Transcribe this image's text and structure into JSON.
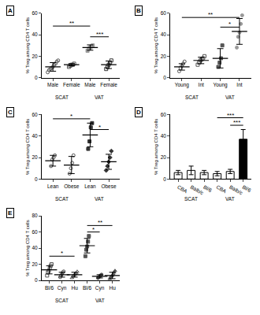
{
  "chart_data": [
    {
      "type": "scatter",
      "title": "A",
      "y_label": "% Treg among CD4 T cells",
      "groups": [
        {
          "name": "SCAT",
          "categories": [
            "Male",
            "Female"
          ]
        },
        {
          "name": "VAT",
          "categories": [
            "Male",
            "Female"
          ]
        }
      ],
      "points": [
        [
          5,
          7,
          8,
          9,
          10,
          12,
          13,
          15,
          16
        ],
        [
          10,
          11,
          12,
          12,
          13
        ],
        [
          25,
          27,
          28,
          29,
          30
        ],
        [
          8,
          10,
          12,
          14,
          16
        ]
      ],
      "means": [
        10,
        12,
        28,
        12
      ],
      "sds": [
        4,
        1,
        2.5,
        3.5
      ],
      "markers": [
        "circle-open",
        "square-open",
        "square",
        "square-open"
      ],
      "colors": [
        "#555555",
        "#555555",
        "#999999",
        "#333333"
      ],
      "significance": [
        {
          "from": 0,
          "to": 2,
          "y": 48,
          "label": "**"
        },
        {
          "from": 2,
          "to": 3,
          "y": 38,
          "label": "***"
        }
      ],
      "ylim": [
        0,
        60
      ],
      "yticks": [
        0,
        20,
        40,
        60
      ]
    },
    {
      "type": "scatter",
      "title": "B",
      "y_label": "% Treg among CD4 T cells",
      "groups": [
        {
          "name": "SCAT",
          "categories": [
            "Young",
            "Int"
          ]
        },
        {
          "name": "VAT",
          "categories": [
            "Young",
            "Int"
          ]
        }
      ],
      "points": [
        [
          6,
          9,
          11,
          13,
          15
        ],
        [
          12,
          14,
          16,
          17,
          18,
          20
        ],
        [
          10,
          14,
          18,
          30
        ],
        [
          28,
          38,
          42,
          50,
          58
        ]
      ],
      "means": [
        10,
        16,
        18,
        43
      ],
      "sds": [
        3,
        3,
        9,
        12
      ],
      "markers": [
        "circle-open",
        "square-open",
        "square",
        "circle"
      ],
      "colors": [
        "#555555",
        "#555555",
        "#555555",
        "#999999"
      ],
      "significance": [
        {
          "from": 0,
          "to": 3,
          "y": 56,
          "label": "**"
        },
        {
          "from": 2,
          "to": 3,
          "y": 47,
          "label": "*"
        }
      ],
      "ylim": [
        0,
        60
      ],
      "yticks": [
        0,
        20,
        40,
        60
      ]
    },
    {
      "type": "scatter",
      "title": "C",
      "y_label": "% Treg among CD4 T cells",
      "groups": [
        {
          "name": "SCAT",
          "categories": [
            "Lean",
            "Obese"
          ]
        },
        {
          "name": "VAT",
          "categories": [
            "Lean",
            "Obese"
          ]
        }
      ],
      "points": [
        [
          12,
          18,
          20,
          22
        ],
        [
          5,
          10,
          15,
          22
        ],
        [
          28,
          35,
          48,
          52
        ],
        [
          8,
          12,
          16,
          20,
          26
        ]
      ],
      "means": [
        17,
        13,
        41,
        16
      ],
      "sds": [
        5,
        8,
        11,
        7
      ],
      "markers": [
        "circle-open",
        "circle-open",
        "square",
        "diamond"
      ],
      "colors": [
        "#555555",
        "#555555",
        "#333333",
        "#333333"
      ],
      "significance": [
        {
          "from": 0,
          "to": 2,
          "y": 56,
          "label": "*"
        },
        {
          "from": 2,
          "to": 3,
          "y": 46,
          "label": "*"
        }
      ],
      "ylim": [
        0,
        60
      ],
      "yticks": [
        0,
        20,
        40,
        60
      ]
    },
    {
      "type": "bar",
      "title": "D",
      "y_label": "% Treg among CD4 T cells",
      "groups": [
        {
          "name": "SCAT",
          "categories": [
            "CBA",
            "Balb/c",
            "Bl/6"
          ]
        },
        {
          "name": "VAT",
          "categories": [
            "CBA",
            "Balb/c",
            "Bl/6"
          ]
        }
      ],
      "values": [
        6,
        8,
        6,
        5,
        7,
        37
      ],
      "sds": [
        2,
        4,
        2,
        2,
        2,
        9
      ],
      "colors": [
        "#ffffff",
        "#ffffff",
        "#ffffff",
        "#ffffff",
        "#ffffff",
        "#000000"
      ],
      "significance": [
        {
          "from": 3,
          "to": 5,
          "y": 57,
          "label": "***"
        },
        {
          "from": 4,
          "to": 5,
          "y": 50,
          "label": "***"
        }
      ],
      "ylim": [
        0,
        60
      ],
      "yticks": [
        0,
        20,
        40,
        60
      ]
    },
    {
      "type": "scatter",
      "title": "E",
      "y_label": "% Treg among CD4 T cells",
      "groups": [
        {
          "name": "SCAT",
          "categories": [
            "Bl/6",
            "Cyn",
            "Hu"
          ]
        },
        {
          "name": "VAT",
          "categories": [
            "Bl/6",
            "Cyn",
            "Hu"
          ]
        }
      ],
      "points": [
        [
          6,
          10,
          12,
          15,
          18,
          20
        ],
        [
          4,
          6,
          8,
          10,
          11
        ],
        [
          3,
          5,
          6,
          7,
          8,
          9,
          11
        ],
        [
          30,
          38,
          42,
          48,
          55
        ],
        [
          3,
          4,
          5,
          6,
          7
        ],
        [
          2,
          4,
          5,
          6,
          8,
          10,
          12
        ]
      ],
      "means": [
        13,
        7,
        7,
        43,
        5,
        6
      ],
      "sds": [
        5,
        3,
        3,
        9,
        2,
        4
      ],
      "markers": [
        "square-open",
        "circle-open",
        "triangle-up-open",
        "square",
        "circle",
        "triangle-up"
      ],
      "colors": [
        "#555555",
        "#555555",
        "#555555",
        "#555555",
        "#555555",
        "#555555"
      ],
      "significance": [
        {
          "from": 0,
          "to": 2,
          "y": 30,
          "label": "*"
        },
        {
          "from": 3,
          "to": 4,
          "y": 60,
          "label": "*"
        },
        {
          "from": 3,
          "to": 5,
          "y": 68,
          "label": "**"
        }
      ],
      "ylim": [
        0,
        80
      ],
      "yticks": [
        0,
        20,
        40,
        60,
        80
      ]
    }
  ]
}
